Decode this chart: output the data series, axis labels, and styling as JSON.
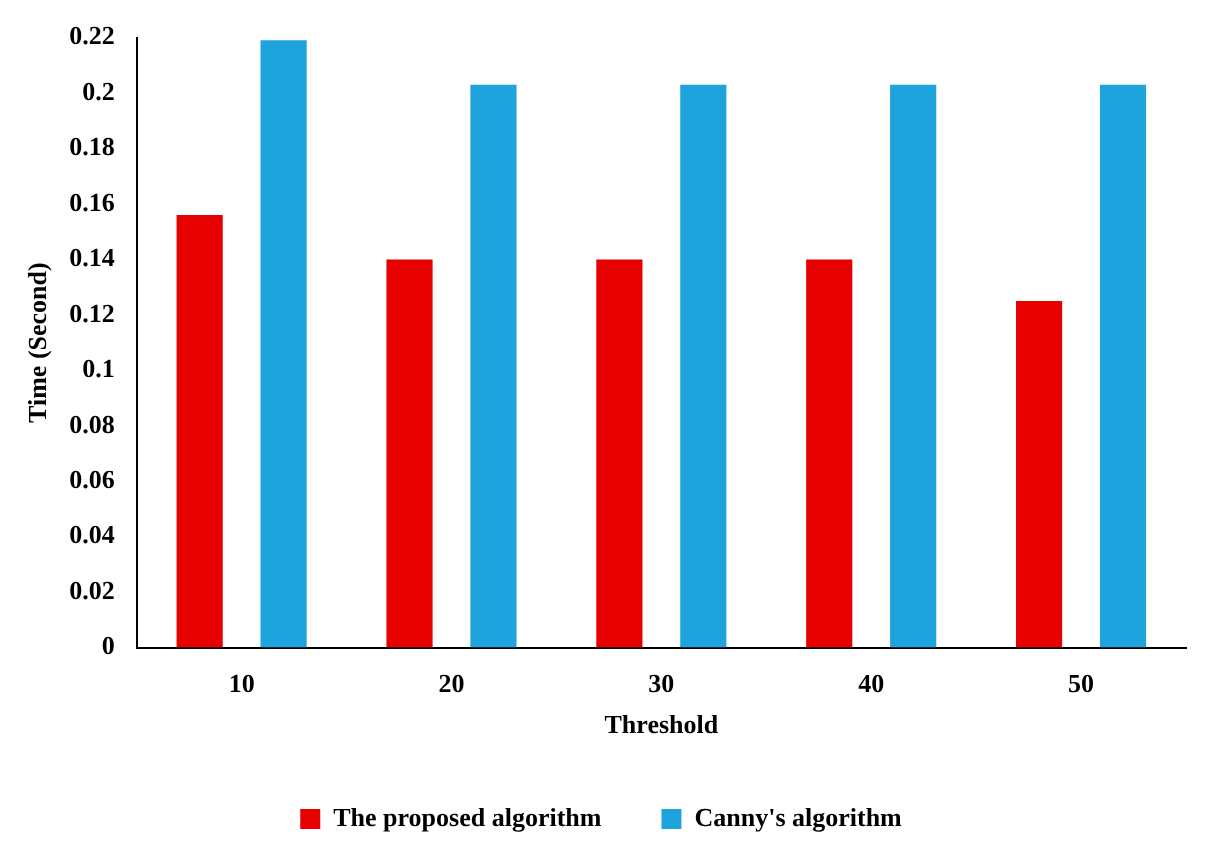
{
  "chart_data": {
    "type": "bar",
    "xlabel": "Threshold",
    "ylabel": "Time (Second)",
    "categories": [
      "10",
      "20",
      "30",
      "40",
      "50"
    ],
    "series": [
      {
        "name": "The proposed algorithm",
        "color": "#e60000",
        "values": [
          0.156,
          0.14,
          0.14,
          0.14,
          0.125
        ]
      },
      {
        "name": "Canny's algorithm",
        "color": "#1fa3dc",
        "values": [
          0.219,
          0.203,
          0.203,
          0.203,
          0.203
        ]
      }
    ],
    "ylim": [
      0,
      0.22
    ],
    "yticks": [
      0,
      0.02,
      0.04,
      0.06,
      0.08,
      0.1,
      0.12,
      0.14,
      0.16,
      0.18,
      0.2,
      0.22
    ],
    "grid": false,
    "legend": "bottom"
  }
}
